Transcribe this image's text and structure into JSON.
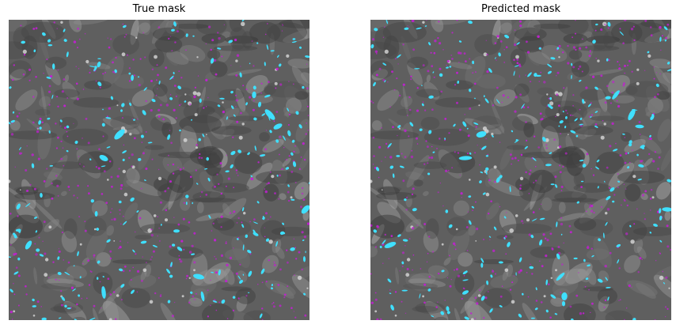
{
  "panels": [
    {
      "title": "True mask"
    },
    {
      "title": "Predicted mask"
    }
  ],
  "colors": {
    "background": "#5f5f5f",
    "cyan_overlay": "#3fe0ff",
    "magenta_overlay": "#c020d0"
  }
}
